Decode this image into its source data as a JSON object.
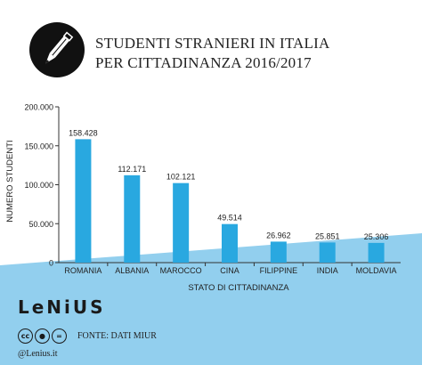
{
  "title_lines": [
    "STUDENTI STRANIERI IN ITALIA",
    "PER CITTADINANZA 2016/2017"
  ],
  "brand": "LeNiUS",
  "source": "FONTE: DATI MIUR",
  "handle": "@Lenius.it",
  "colors": {
    "bar": "#29a8e0",
    "band": "#92cfee",
    "text": "#222222"
  },
  "chart_data": {
    "type": "bar",
    "title": "STUDENTI STRANIERI IN ITALIA PER CITTADINANZA 2016/2017",
    "xlabel": "STATO DI CITTADINANZA",
    "ylabel": "NUMERO STUDENTI",
    "categories": [
      "ROMANIA",
      "ALBANIA",
      "MAROCCO",
      "CINA",
      "FILIPPINE",
      "INDIA",
      "MOLDAVIA"
    ],
    "values": [
      158428,
      112171,
      102121,
      49514,
      26962,
      25851,
      25306
    ],
    "value_labels": [
      "158.428",
      "112.171",
      "102.121",
      "49.514",
      "26.962",
      "25.851",
      "25.306"
    ],
    "ylim": [
      0,
      200000
    ],
    "yticks": [
      0,
      50000,
      100000,
      150000,
      200000
    ],
    "ytick_labels": [
      "0",
      "50.000",
      "100.000",
      "150.000",
      "200.000"
    ],
    "grid": false,
    "legend": "none"
  }
}
